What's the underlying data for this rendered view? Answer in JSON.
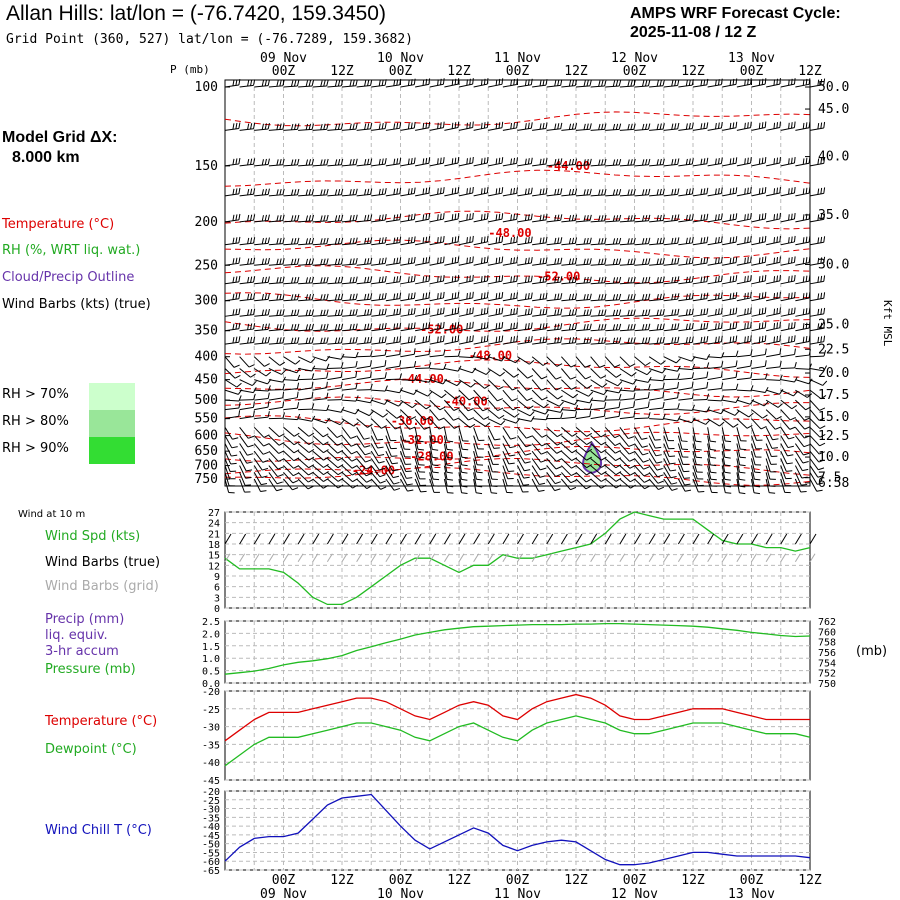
{
  "header": {
    "title": "Allan Hills:  lat/lon = (-76.7420, 159.3450)",
    "subtitle": "Grid Point (360, 527) lat/lon = (-76.7289, 159.3682)",
    "cycle_line1": "AMPS WRF Forecast Cycle:",
    "cycle_line2": "2025-11-08 / 12  Z"
  },
  "grid_dx": {
    "line1": "Model Grid ΔX:",
    "line2": "8.000 km"
  },
  "legend_upper": {
    "temperature": "Temperature (°C)",
    "rh": "RH (%, WRT liq. wat.)",
    "cloud": "Cloud/Precip Outline",
    "wind_barbs": "Wind Barbs (kts) (true)",
    "rh_levels": [
      {
        "label": "RH > 70%",
        "color": "#ccffcc"
      },
      {
        "label": "RH > 80%",
        "color": "#99e699"
      },
      {
        "label": "RH > 90%",
        "color": "#33dd33"
      }
    ]
  },
  "legend_wind": {
    "wind_at": "Wind at 10 m",
    "wind_spd": "Wind Spd (kts)",
    "barbs_true": "Wind Barbs (true)",
    "barbs_grid": "Wind Barbs (grid)"
  },
  "legend_precip": {
    "precip": "Precip (mm)",
    "liq": "liq. equiv.",
    "accum": "3-hr accum",
    "pressure": "Pressure (mb)",
    "unit": "(mb)"
  },
  "legend_temp": {
    "temperature": "Temperature (°C)",
    "dewpoint": "Dewpoint (°C)"
  },
  "legend_chill": {
    "wind_chill": "Wind Chill T (°C)"
  },
  "colors": {
    "temp": "#dd0000",
    "green": "#22bb22",
    "purple": "#6633aa",
    "blue": "#1111bb",
    "grid": "#bbbbbb",
    "barb_grid": "#aaaaaa"
  },
  "time_axis": {
    "hour_labels": [
      "00Z",
      "12Z",
      "00Z",
      "12Z",
      "00Z",
      "12Z",
      "00Z",
      "12Z",
      "00Z",
      "12Z"
    ],
    "day_labels": [
      "09 Nov",
      "10 Nov",
      "11 Nov",
      "12 Nov",
      "13 Nov"
    ]
  },
  "chart_data": [
    {
      "type": "line",
      "panel": "sounding",
      "ylabel_left": "P (mb)",
      "ylabel_right": "Kft MSL",
      "pressure_ticks": [
        "100",
        "150",
        "200",
        "250",
        "300",
        "350",
        "400",
        "450",
        "500",
        "550",
        "600",
        "650",
        "700",
        "750"
      ],
      "height_ticks": [
        {
          "p": 100,
          "label": "50.0"
        },
        {
          "p": 112,
          "label": "45.0"
        },
        {
          "p": 143,
          "label": "40.0"
        },
        {
          "p": 193,
          "label": "35.0"
        },
        {
          "p": 249,
          "label": "30.0"
        },
        {
          "p": 339,
          "label": "25.0"
        },
        {
          "p": 385,
          "label": "22.5"
        },
        {
          "p": 435,
          "label": "20.0"
        },
        {
          "p": 487,
          "label": "17.5"
        },
        {
          "p": 545,
          "label": "15.0"
        },
        {
          "p": 602,
          "label": "12.5"
        },
        {
          "p": 670,
          "label": "10.0"
        },
        {
          "p": 745,
          "label": "7.5"
        },
        {
          "p": 765,
          "label": "6.58"
        }
      ],
      "isotherm_labels": [
        {
          "t_h": 66,
          "p": 150,
          "label": "-44.00"
        },
        {
          "t_h": 54,
          "p": 212,
          "label": "-48.00"
        },
        {
          "t_h": 64,
          "p": 265,
          "label": "-52.00"
        },
        {
          "t_h": 40,
          "p": 348,
          "label": "-52.00"
        },
        {
          "t_h": 50,
          "p": 398,
          "label": "-48.00"
        },
        {
          "t_h": 36,
          "p": 448,
          "label": "-44.00"
        },
        {
          "t_h": 45,
          "p": 503,
          "label": "-40.00"
        },
        {
          "t_h": 34,
          "p": 557,
          "label": "-36.00"
        },
        {
          "t_h": 36,
          "p": 613,
          "label": "-32.00"
        },
        {
          "t_h": 38,
          "p": 668,
          "label": "-28.00"
        },
        {
          "t_h": 26,
          "p": 718,
          "label": "-24.00"
        }
      ]
    },
    {
      "type": "line",
      "panel": "wind",
      "ylim": [
        0,
        27
      ],
      "yticks": [
        "0",
        "3",
        "6",
        "9",
        "12",
        "15",
        "18",
        "21",
        "24",
        "27"
      ],
      "series": [
        {
          "name": "Wind Spd (kts)",
          "x": [
            0,
            3,
            6,
            9,
            12,
            15,
            18,
            21,
            24,
            27,
            30,
            33,
            36,
            39,
            42,
            45,
            48,
            51,
            54,
            57,
            60,
            63,
            66,
            69,
            72,
            75,
            78,
            81,
            84,
            87,
            90,
            93,
            96,
            99,
            102,
            105,
            108,
            111,
            114,
            117,
            120
          ],
          "values": [
            14,
            11,
            11,
            11,
            10,
            7,
            3,
            1,
            1,
            3,
            6,
            9,
            12,
            14,
            14,
            12,
            10,
            12,
            12,
            15,
            14,
            14,
            15,
            16,
            17,
            18,
            21,
            25,
            27,
            26,
            25,
            25,
            25,
            22,
            19,
            18,
            18,
            17,
            17,
            16,
            17
          ]
        }
      ]
    },
    {
      "type": "line",
      "panel": "precip_pressure",
      "ylim": [
        0,
        2.5
      ],
      "yticks": [
        "0.0",
        "0.5",
        "1.0",
        "1.5",
        "2.0",
        "2.5"
      ],
      "pressure_ylim": [
        750,
        762
      ],
      "pressure_ticks": [
        "750",
        "752",
        "754",
        "756",
        "758",
        "760",
        "762"
      ],
      "series": [
        {
          "name": "Pressure (mb)",
          "x": [
            0,
            3,
            6,
            9,
            12,
            15,
            18,
            21,
            24,
            27,
            30,
            33,
            36,
            39,
            42,
            45,
            48,
            51,
            54,
            57,
            60,
            63,
            66,
            69,
            72,
            75,
            78,
            81,
            84,
            87,
            90,
            93,
            96,
            99,
            102,
            105,
            108,
            111,
            114,
            117,
            120
          ],
          "values": [
            751.7,
            752.0,
            752.3,
            752.8,
            753.5,
            754.0,
            754.3,
            754.7,
            755.3,
            756.3,
            757.0,
            757.8,
            758.5,
            759.3,
            759.8,
            760.3,
            760.6,
            760.9,
            761.0,
            761.1,
            761.2,
            761.3,
            761.3,
            761.3,
            761.4,
            761.4,
            761.5,
            761.5,
            761.4,
            761.3,
            761.2,
            761.1,
            761.0,
            760.8,
            760.5,
            760.2,
            759.8,
            759.5,
            759.2,
            759.0,
            759.1
          ]
        }
      ]
    },
    {
      "type": "line",
      "panel": "temperature",
      "ylim": [
        -45,
        -20
      ],
      "yticks": [
        "-20",
        "-25",
        "-30",
        "-35",
        "-40",
        "-45"
      ],
      "series": [
        {
          "name": "Temperature (°C)",
          "x": [
            0,
            3,
            6,
            9,
            12,
            15,
            18,
            21,
            24,
            27,
            30,
            33,
            36,
            39,
            42,
            45,
            48,
            51,
            54,
            57,
            60,
            63,
            66,
            69,
            72,
            75,
            78,
            81,
            84,
            87,
            90,
            93,
            96,
            99,
            102,
            105,
            108,
            111,
            114,
            117,
            120
          ],
          "values": [
            -34,
            -31,
            -28,
            -26,
            -26,
            -26,
            -25,
            -24,
            -23,
            -22,
            -22,
            -23,
            -25,
            -27,
            -28,
            -26,
            -24,
            -23,
            -24,
            -27,
            -28,
            -25,
            -23,
            -22,
            -21,
            -22,
            -24,
            -27,
            -28,
            -28,
            -27,
            -26,
            -25,
            -25,
            -25,
            -26,
            -27,
            -28,
            -28,
            -28,
            -28
          ]
        },
        {
          "name": "Dewpoint (°C)",
          "x": [
            0,
            3,
            6,
            9,
            12,
            15,
            18,
            21,
            24,
            27,
            30,
            33,
            36,
            39,
            42,
            45,
            48,
            51,
            54,
            57,
            60,
            63,
            66,
            69,
            72,
            75,
            78,
            81,
            84,
            87,
            90,
            93,
            96,
            99,
            102,
            105,
            108,
            111,
            114,
            117,
            120
          ],
          "values": [
            -41,
            -38,
            -35,
            -33,
            -33,
            -33,
            -32,
            -31,
            -30,
            -29,
            -29,
            -30,
            -31,
            -33,
            -34,
            -32,
            -30,
            -29,
            -31,
            -33,
            -34,
            -31,
            -29,
            -28,
            -27,
            -28,
            -29,
            -31,
            -32,
            -32,
            -31,
            -30,
            -29,
            -29,
            -29,
            -30,
            -31,
            -32,
            -32,
            -32,
            -33
          ]
        }
      ]
    },
    {
      "type": "line",
      "panel": "wind_chill",
      "ylim": [
        -65,
        -20
      ],
      "yticks": [
        "-20",
        "-25",
        "-30",
        "-35",
        "-40",
        "-45",
        "-50",
        "-55",
        "-60",
        "-65"
      ],
      "series": [
        {
          "name": "Wind Chill T (°C)",
          "x": [
            0,
            3,
            6,
            9,
            12,
            15,
            18,
            21,
            24,
            27,
            30,
            33,
            36,
            39,
            42,
            45,
            48,
            51,
            54,
            57,
            60,
            63,
            66,
            69,
            72,
            75,
            78,
            81,
            84,
            87,
            90,
            93,
            96,
            99,
            102,
            105,
            108,
            111,
            114,
            117,
            120
          ],
          "values": [
            -60,
            -52,
            -47,
            -46,
            -46,
            -44,
            -36,
            -28,
            -24,
            -23,
            -22,
            -31,
            -40,
            -48,
            -53,
            -49,
            -45,
            -41,
            -44,
            -51,
            -54,
            -51,
            -49,
            -48,
            -49,
            -54,
            -59,
            -62,
            -62,
            -61,
            -59,
            -57,
            -55,
            -55,
            -56,
            -57,
            -57,
            -57,
            -57,
            -57,
            -58
          ]
        }
      ]
    }
  ]
}
